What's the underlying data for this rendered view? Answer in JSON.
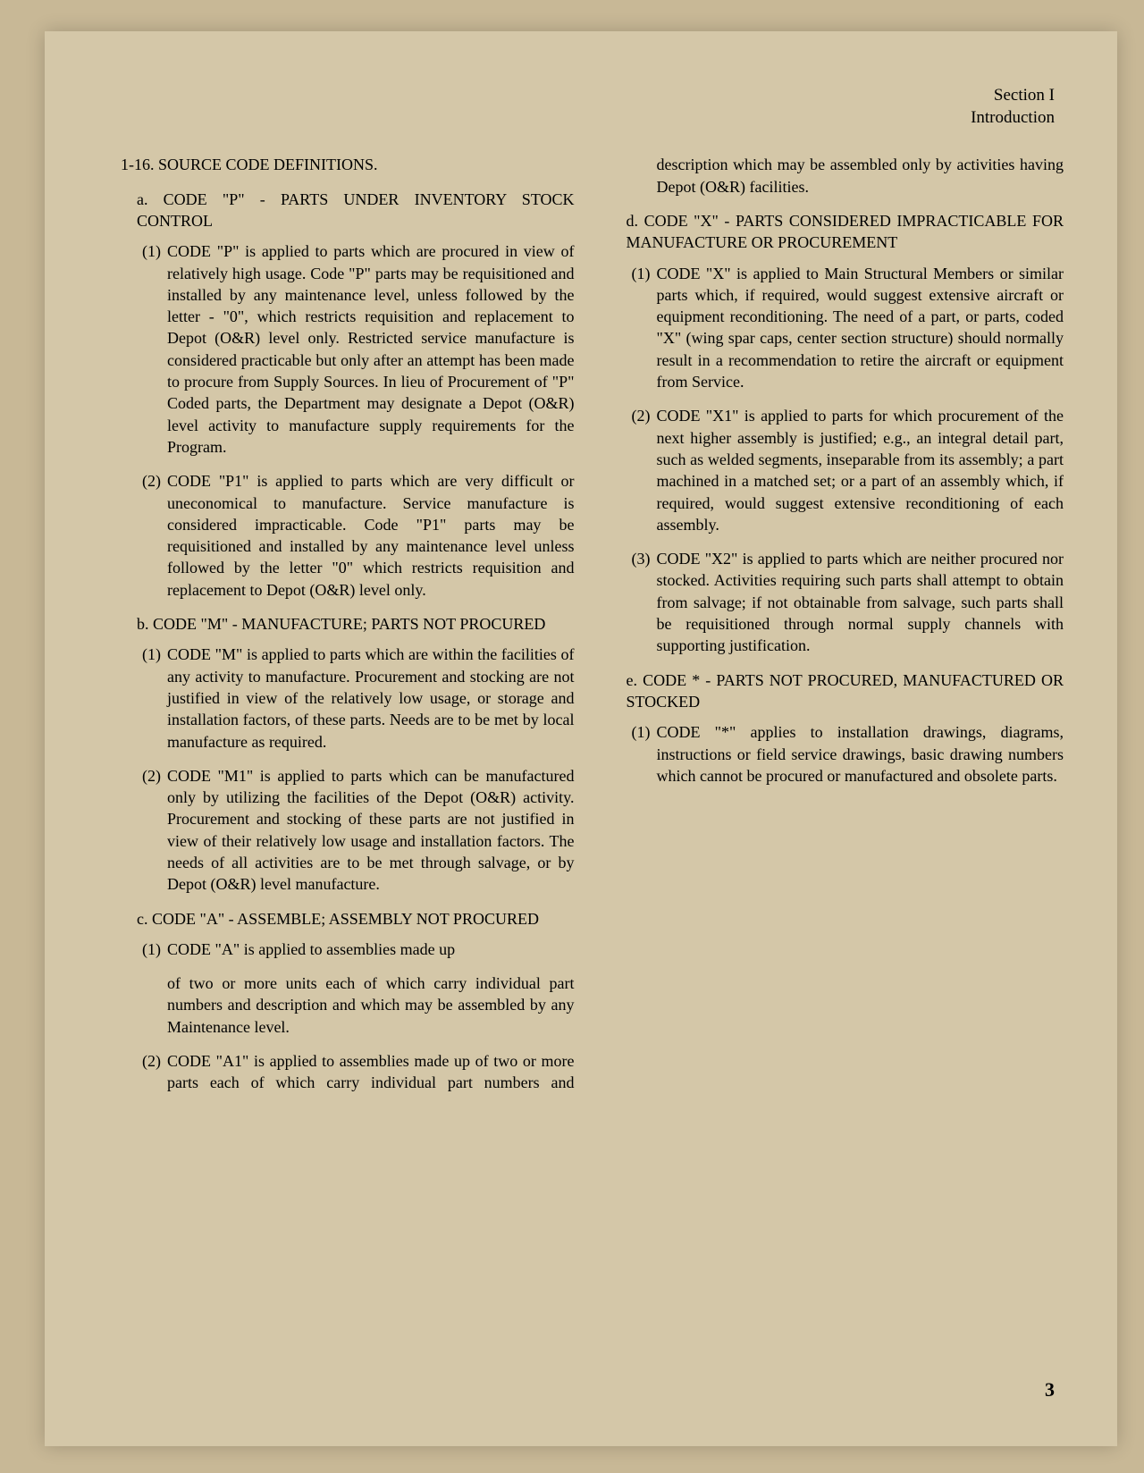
{
  "header": {
    "section": "Section I",
    "subtitle": "Introduction"
  },
  "main_title": "1-16. SOURCE CODE DEFINITIONS.",
  "sections": {
    "a": {
      "heading": "a. CODE \"P\" - PARTS UNDER INVENTORY STOCK CONTROL",
      "items": [
        "CODE \"P\" is applied to parts which are procured in view of relatively high usage. Code \"P\" parts may be requisitioned and installed by any maintenance level, unless followed by the letter - \"0\", which restricts requisition and replacement to Depot (O&R) level only. Restricted service manufacture is considered practicable but only after an attempt has been made to procure from Supply Sources. In lieu of Procurement of \"P\" Coded parts, the Department may designate a Depot (O&R) level activity to manufacture supply requirements for the Program.",
        "CODE \"P1\" is applied to parts which are very difficult or uneconomical to manufacture. Service manufacture is considered impracticable. Code \"P1\" parts may be requisitioned and installed by any maintenance level unless followed by the letter \"0\" which restricts requisition and replacement to Depot (O&R) level only."
      ]
    },
    "b": {
      "heading": "b. CODE \"M\" - MANUFACTURE; PARTS NOT PROCURED",
      "items": [
        "CODE \"M\" is applied to parts which are within the facilities of any activity to manufacture. Procurement and stocking are not justified in view of the relatively low usage, or storage and installation factors, of these parts. Needs are to be met by local manufacture as required.",
        "CODE \"M1\" is applied to parts which can be manufactured only by utilizing the facilities of the Depot (O&R) activity. Procurement and stocking of these parts are not justified in view of their relatively low usage and installation factors. The needs of all activities are to be met through salvage, or by Depot (O&R) level manufacture."
      ]
    },
    "c": {
      "heading": "c. CODE \"A\" - ASSEMBLE; ASSEMBLY NOT PROCURED",
      "items_part1": "CODE \"A\" is applied to assemblies made up",
      "items_part1_cont": "of two or more units each of which carry individual part numbers and description and which may be assembled by any Maintenance level.",
      "items": [
        "CODE \"A1\" is applied to assemblies made up of two or more parts each of which carry individual part numbers and description which may be assembled only by activities having Depot (O&R) facilities."
      ]
    },
    "d": {
      "heading": "d. CODE \"X\" - PARTS CONSIDERED IMPRACTICABLE FOR MANUFACTURE OR PROCUREMENT",
      "items": [
        "CODE \"X\" is applied to Main Structural Members or similar parts which, if required, would suggest extensive aircraft or equipment reconditioning. The need of a part, or parts, coded \"X\" (wing spar caps, center section structure) should normally result in a recommendation to retire the aircraft or equipment from Service.",
        "CODE \"X1\" is applied to parts for which procurement of the next higher assembly is justified; e.g., an integral detail part, such as welded segments, inseparable from its assembly; a part machined in a matched set; or a part of an assembly which, if required, would suggest extensive reconditioning of each assembly.",
        "CODE \"X2\" is applied to parts which are neither procured nor stocked. Activities requiring such parts shall attempt to obtain from salvage; if not obtainable from salvage, such parts shall be requisitioned through normal supply channels with supporting justification."
      ]
    },
    "e": {
      "heading": "e. CODE * - PARTS NOT PROCURED, MANUFACTURED OR STOCKED",
      "items": [
        "CODE \"*\" applies to installation drawings, diagrams, instructions or field service drawings, basic drawing numbers which cannot be procured or manufactured and obsolete parts."
      ]
    }
  },
  "page_number": "3",
  "colors": {
    "page_bg": "#d4c7a8",
    "outer_bg": "#c8b896",
    "text": "#000000",
    "hole": "#1a1a1a"
  }
}
